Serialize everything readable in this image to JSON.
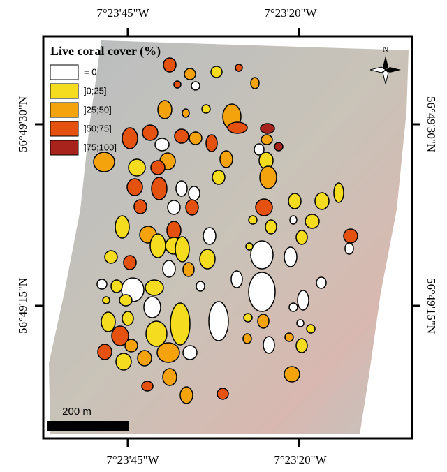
{
  "map": {
    "legend": {
      "title": "Live coral cover (%)",
      "items": [
        {
          "label": "= 0",
          "color": "#ffffff"
        },
        {
          "label": "]0;25]",
          "color": "#f5dc1e"
        },
        {
          "label": "]25;50]",
          "color": "#f4a30c"
        },
        {
          "label": "]50;75]",
          "color": "#e5520f"
        },
        {
          "label": "]75;100]",
          "color": "#a8231b"
        }
      ]
    },
    "axes": {
      "top": [
        "7°23'45\"W",
        "7°23'20\"W"
      ],
      "bottom": [
        "7°23'45\"W",
        "7°23'20\"W"
      ],
      "left": [
        "56°49'30\"N",
        "56°49'15\"N"
      ],
      "right": [
        "56°49'30\"N",
        "56°49'15\"N"
      ]
    },
    "scale_bar": "200 m",
    "north": "N"
  }
}
